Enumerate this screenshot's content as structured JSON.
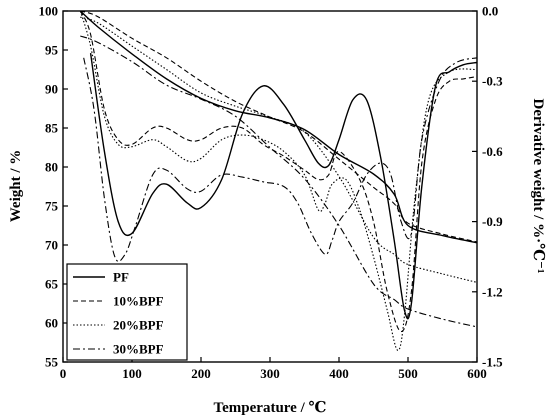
{
  "chart_data": {
    "type": "line",
    "xlabel": "Temperature / ℃",
    "ylabel": "Weight / %",
    "y2label": "Derivative weight / %·℃⁻¹",
    "xlim": [
      0,
      600
    ],
    "ylim": [
      55,
      100
    ],
    "y2lim": [
      -1.5,
      0.0
    ],
    "xticks": [
      "0",
      "100",
      "200",
      "300",
      "400",
      "500",
      "600"
    ],
    "yticks": [
      "55",
      "60",
      "65",
      "70",
      "75",
      "80",
      "85",
      "90",
      "95",
      "100"
    ],
    "y2ticks": [
      "0.0",
      "-0.3",
      "-0.6",
      "-0.9",
      "-1.2",
      "-1.5"
    ],
    "grid": false,
    "legend_position": "bottom-left",
    "colors": {
      "line": "#000000",
      "background": "#ffffff"
    },
    "series": [
      {
        "name": "PF",
        "dash": "solid",
        "axis": "left",
        "kind": "weight",
        "x": [
          25,
          50,
          100,
          150,
          200,
          250,
          300,
          350,
          400,
          450,
          480,
          500,
          550,
          600
        ],
        "values": [
          100,
          98,
          94.5,
          91.3,
          88.8,
          87.2,
          86.3,
          84.8,
          81.6,
          79.1,
          76.5,
          72.5,
          71.2,
          70.3
        ]
      },
      {
        "name": "PF",
        "dash": "solid",
        "axis": "right",
        "kind": "derivative",
        "x": [
          40,
          60,
          80,
          100,
          130,
          150,
          180,
          200,
          230,
          260,
          290,
          320,
          350,
          370,
          385,
          400,
          420,
          440,
          460,
          480,
          495,
          505,
          520,
          540,
          560,
          580,
          600
        ],
        "values": [
          -0.18,
          -0.6,
          -0.9,
          -0.95,
          -0.78,
          -0.74,
          -0.82,
          -0.84,
          -0.72,
          -0.44,
          -0.32,
          -0.4,
          -0.55,
          -0.65,
          -0.66,
          -0.55,
          -0.38,
          -0.38,
          -0.62,
          -0.98,
          -1.28,
          -1.25,
          -0.75,
          -0.32,
          -0.26,
          -0.23,
          -0.22
        ]
      },
      {
        "name": "10%BPF",
        "dash": "dashed",
        "axis": "left",
        "kind": "weight",
        "x": [
          25,
          50,
          100,
          150,
          200,
          250,
          300,
          350,
          400,
          450,
          480,
          500,
          550,
          600
        ],
        "values": [
          100,
          99.3,
          96.5,
          94,
          91,
          88.4,
          86.4,
          84.5,
          81,
          77.4,
          75.3,
          72.8,
          71.4,
          70.4
        ]
      },
      {
        "name": "10%BPF",
        "dash": "dashed",
        "axis": "right",
        "kind": "derivative",
        "x": [
          25,
          40,
          60,
          80,
          100,
          130,
          150,
          180,
          200,
          230,
          260,
          290,
          320,
          350,
          370,
          385,
          400,
          430,
          450,
          470,
          490,
          505,
          520,
          540,
          560,
          580,
          600
        ],
        "values": [
          0.0,
          -0.1,
          -0.42,
          -0.55,
          -0.57,
          -0.5,
          -0.5,
          -0.55,
          -0.55,
          -0.5,
          -0.5,
          -0.57,
          -0.62,
          -0.68,
          -0.72,
          -0.7,
          -0.6,
          -0.72,
          -0.9,
          -1.2,
          -1.37,
          -1.2,
          -0.65,
          -0.38,
          -0.3,
          -0.29,
          -0.28
        ]
      },
      {
        "name": "20%BPF",
        "dash": "dotted",
        "axis": "left",
        "kind": "weight",
        "x": [
          25,
          50,
          100,
          150,
          200,
          250,
          300,
          350,
          400,
          450,
          480,
          500,
          550,
          600
        ],
        "values": [
          99.2,
          98.5,
          95.5,
          92.5,
          89.5,
          87.8,
          86.4,
          84.5,
          78.8,
          71,
          68.8,
          67.5,
          66.3,
          65.2
        ]
      },
      {
        "name": "20%BPF",
        "dash": "dotted",
        "axis": "right",
        "kind": "derivative",
        "x": [
          25,
          40,
          60,
          80,
          100,
          130,
          150,
          180,
          200,
          230,
          260,
          290,
          320,
          350,
          370,
          380,
          390,
          410,
          430,
          450,
          470,
          485,
          495,
          510,
          530,
          560,
          600
        ],
        "values": [
          0.0,
          -0.15,
          -0.45,
          -0.57,
          -0.58,
          -0.55,
          -0.58,
          -0.64,
          -0.63,
          -0.55,
          -0.53,
          -0.55,
          -0.6,
          -0.7,
          -0.85,
          -0.82,
          -0.74,
          -0.72,
          -0.85,
          -1.05,
          -1.28,
          -1.45,
          -1.3,
          -0.8,
          -0.38,
          -0.26,
          -0.25
        ]
      },
      {
        "name": "30%BPF",
        "dash": "dashdot",
        "axis": "left",
        "kind": "weight",
        "x": [
          25,
          50,
          100,
          150,
          200,
          250,
          300,
          350,
          400,
          450,
          480,
          500,
          550,
          600
        ],
        "values": [
          96.8,
          96,
          93.5,
          90.5,
          88.7,
          86.5,
          82.5,
          78.5,
          72.5,
          65,
          63,
          61.8,
          60.5,
          59.5
        ]
      },
      {
        "name": "30%BPF",
        "dash": "dashdot",
        "axis": "right",
        "kind": "derivative",
        "x": [
          30,
          45,
          60,
          75,
          90,
          105,
          130,
          150,
          180,
          200,
          230,
          260,
          290,
          320,
          340,
          360,
          380,
          390,
          400,
          420,
          440,
          460,
          475,
          490,
          505,
          520,
          545,
          570,
          600
        ],
        "values": [
          -0.2,
          -0.42,
          -0.8,
          -1.05,
          -1.04,
          -0.92,
          -0.7,
          -0.68,
          -0.76,
          -0.77,
          -0.7,
          -0.71,
          -0.73,
          -0.75,
          -0.82,
          -0.95,
          -1.04,
          -0.98,
          -0.9,
          -0.82,
          -0.7,
          -0.65,
          -0.7,
          -0.9,
          -0.95,
          -0.55,
          -0.3,
          -0.22,
          -0.2
        ]
      }
    ]
  }
}
